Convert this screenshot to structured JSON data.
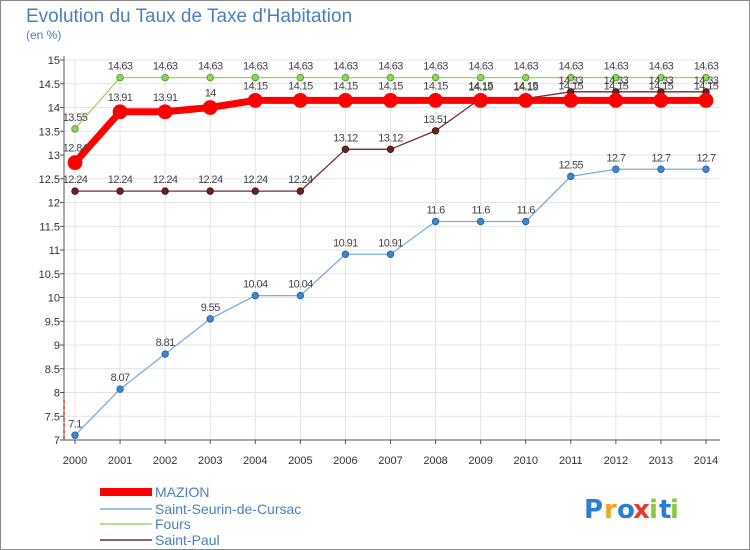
{
  "chart_data": {
    "type": "line",
    "title": "Evolution du Taux de Taxe d'Habitation",
    "subtitle": "(en %)",
    "xlabel": "",
    "ylabel": "(en %)",
    "ylim": [
      7,
      15
    ],
    "y_ticks": [
      "7",
      "7.5",
      "8",
      "8.5",
      "9",
      "9.5",
      "10",
      "10.5",
      "11",
      "11.5",
      "12",
      "12.5",
      "13",
      "13.5",
      "14",
      "14.5",
      "15"
    ],
    "categories": [
      "2000",
      "2001",
      "2002",
      "2003",
      "2004",
      "2005",
      "2006",
      "2007",
      "2008",
      "2009",
      "2010",
      "2011",
      "2012",
      "2013",
      "2014"
    ],
    "series": [
      {
        "name": "MAZION",
        "color": "#ff0000",
        "values": [
          12.84,
          13.91,
          13.91,
          14,
          14.15,
          14.15,
          14.15,
          14.15,
          14.15,
          14.15,
          14.15,
          14.15,
          14.15,
          14.15,
          14.15
        ],
        "labels": [
          "12.84",
          "13.91",
          "13.91",
          "14",
          "14.15",
          "14.15",
          "14.15",
          "14.15",
          "14.15",
          "14.15",
          "14.15",
          "14.15",
          "14.15",
          "14.15",
          "14.15"
        ]
      },
      {
        "name": "Saint-Seurin-de-Cursac",
        "color": "#6fa8dc",
        "values": [
          7.1,
          8.07,
          8.81,
          9.55,
          10.04,
          10.04,
          10.91,
          10.91,
          11.6,
          11.6,
          11.6,
          12.55,
          12.7,
          12.7,
          12.7
        ],
        "labels": [
          "7.1",
          "8.07",
          "8.81",
          "9.55",
          "10.04",
          "10.04",
          "10.91",
          "10.91",
          "11.6",
          "11.6",
          "11.6",
          "12.55",
          "12.7",
          "12.7",
          "12.7"
        ]
      },
      {
        "name": "Fours",
        "color": "#8fd35a",
        "values": [
          13.55,
          14.63,
          14.63,
          14.63,
          14.63,
          14.63,
          14.63,
          14.63,
          14.63,
          14.63,
          14.63,
          14.63,
          14.63,
          14.63,
          14.63
        ],
        "labels": [
          "13.55",
          "14.63",
          "14.63",
          "14.63",
          "14.63",
          "14.63",
          "14.63",
          "14.63",
          "14.63",
          "14.63",
          "14.63",
          "14.63",
          "14.63",
          "14.63",
          "14.63"
        ]
      },
      {
        "name": "Saint-Paul",
        "color": "#7a2a2a",
        "values": [
          12.24,
          12.24,
          12.24,
          12.24,
          12.24,
          12.24,
          13.12,
          13.12,
          13.51,
          14.19,
          14.19,
          14.33,
          14.33,
          14.33,
          14.33
        ],
        "labels": [
          "12.24",
          "12.24",
          "12.24",
          "12.24",
          "12.24",
          "12.24",
          "13.12",
          "13.12",
          "13.51",
          "14.19",
          "14.19",
          "14.33",
          "14.33",
          "14.33",
          "14.33"
        ]
      }
    ],
    "legend_position": "bottom-left"
  },
  "brand": {
    "logo_letters": [
      "P",
      "r",
      "o",
      "x",
      "i",
      "t",
      "i"
    ],
    "logo_colors": [
      "#2a7fd4",
      "#f7a21b",
      "#2a7fd4",
      "#e63b2e",
      "#8cc63f",
      "#2a7fd4",
      "#8cc63f"
    ]
  }
}
